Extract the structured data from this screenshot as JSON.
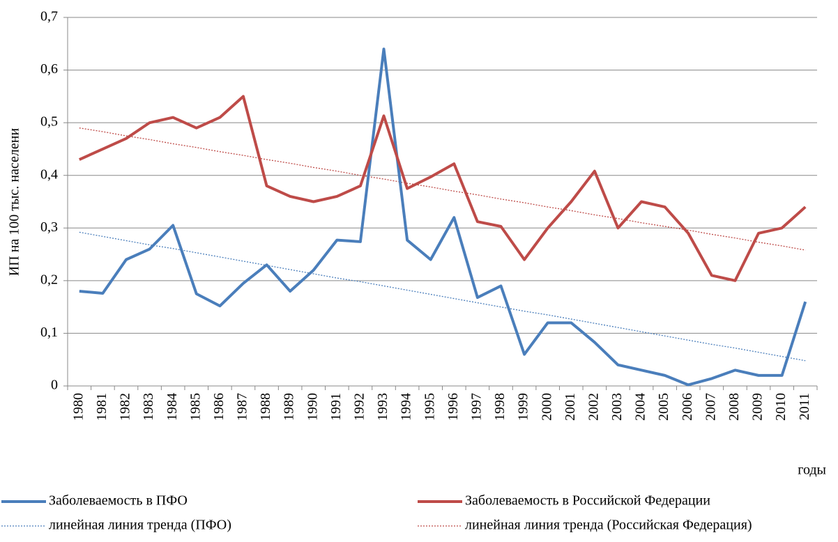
{
  "chart_data": {
    "type": "line",
    "y_label": "ИП на 100 тыс. населени",
    "x_label": "годы",
    "categories": [
      "1980",
      "1981",
      "1982",
      "1983",
      "1984",
      "1985",
      "1986",
      "1987",
      "1988",
      "1989",
      "1990",
      "1991",
      "1992",
      "1993",
      "1994",
      "1995",
      "1996",
      "1997",
      "1998",
      "1999",
      "2000",
      "2001",
      "2002",
      "2003",
      "2004",
      "2005",
      "2006",
      "2007",
      "2008",
      "2009",
      "2010",
      "2011"
    ],
    "ylim": [
      0,
      0.7
    ],
    "yticks": [
      0,
      {
        "value": 0.1,
        "label": "0,1"
      },
      {
        "value": 0.2,
        "label": "0,2"
      },
      {
        "value": 0.3,
        "label": "0,3"
      },
      {
        "value": 0.4,
        "label": "0,4"
      },
      {
        "value": 0.5,
        "label": "0,5"
      },
      {
        "value": 0.6,
        "label": "0,6"
      },
      {
        "value": 0.7,
        "label": "0,7"
      }
    ],
    "grid": true,
    "series": [
      {
        "name": "Заболеваемость в ПФО",
        "color": "#4a7ebb",
        "style": "solid",
        "values": [
          0.18,
          0.176,
          0.24,
          0.26,
          0.305,
          0.175,
          0.152,
          0.195,
          0.23,
          0.18,
          0.22,
          0.277,
          0.274,
          0.64,
          0.277,
          0.24,
          0.32,
          0.168,
          0.19,
          0.06,
          0.12,
          0.12,
          0.083,
          0.04,
          0.03,
          0.02,
          0.002,
          0.014,
          0.03,
          0.02,
          0.02,
          0.16
        ]
      },
      {
        "name": "Заболеваемость в Российской Федерации",
        "color": "#be4b48",
        "style": "solid",
        "values": [
          0.43,
          0.45,
          0.47,
          0.5,
          0.51,
          0.49,
          0.51,
          0.55,
          0.38,
          0.36,
          0.35,
          0.36,
          0.38,
          0.513,
          0.375,
          0.397,
          0.422,
          0.312,
          0.303,
          0.24,
          0.3,
          0.35,
          0.408,
          0.3,
          0.35,
          0.34,
          0.29,
          0.21,
          0.2,
          0.29,
          0.3,
          0.34
        ]
      },
      {
        "name": "линейная линия тренда (ПФО)",
        "color": "#4a7ebb",
        "style": "dotted",
        "values": [
          0.292,
          0.284,
          0.276,
          0.268,
          0.261,
          0.253,
          0.245,
          0.237,
          0.229,
          0.221,
          0.213,
          0.205,
          0.198,
          0.19,
          0.182,
          0.174,
          0.166,
          0.158,
          0.15,
          0.142,
          0.135,
          0.127,
          0.119,
          0.111,
          0.103,
          0.095,
          0.087,
          0.079,
          0.072,
          0.064,
          0.056,
          0.048
        ]
      },
      {
        "name": "линейная линия тренда (Российская Федерация)",
        "color": "#be4b48",
        "style": "dotted",
        "values": [
          0.49,
          0.483,
          0.475,
          0.468,
          0.46,
          0.453,
          0.445,
          0.438,
          0.43,
          0.423,
          0.415,
          0.408,
          0.4,
          0.393,
          0.385,
          0.378,
          0.37,
          0.363,
          0.355,
          0.348,
          0.34,
          0.333,
          0.325,
          0.318,
          0.31,
          0.303,
          0.296,
          0.288,
          0.281,
          0.273,
          0.266,
          0.258
        ]
      }
    ]
  }
}
